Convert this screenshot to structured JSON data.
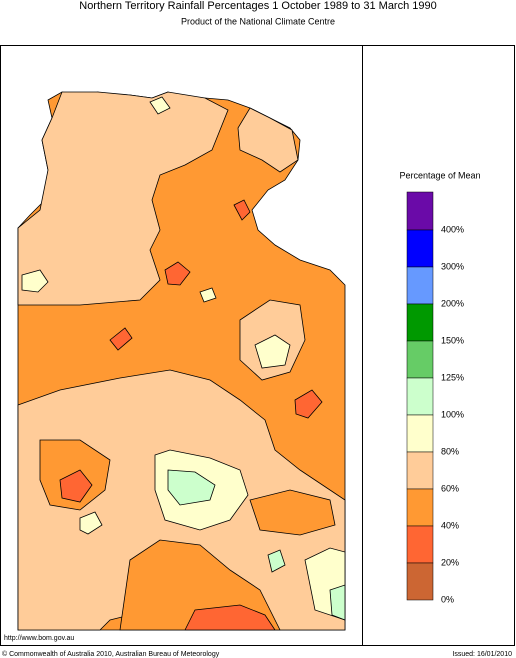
{
  "header": {
    "title": "Northern Territory Rainfall Percentages 1 October 1989 to 31 March 1990",
    "subtitle": "Product of the National Climate Centre"
  },
  "legend": {
    "title": "Percentage of Mean",
    "labels": [
      "400%",
      "300%",
      "200%",
      "150%",
      "125%",
      "100%",
      "80%",
      "60%",
      "40%",
      "20%",
      "0%"
    ],
    "colors": [
      "#6a0aa8",
      "#0000ff",
      "#6699ff",
      "#009900",
      "#66cc66",
      "#ccffcc",
      "#ffffcc",
      "#ffcc99",
      "#ff9933",
      "#ff6633",
      "#cc6633"
    ]
  },
  "footer": {
    "url": "http://www.bom.gov.au",
    "copyright": "© Commonwealth of Australia 2010, Australian Bureau of Meteorology",
    "issued": "Issued: 16/01/2010"
  }
}
